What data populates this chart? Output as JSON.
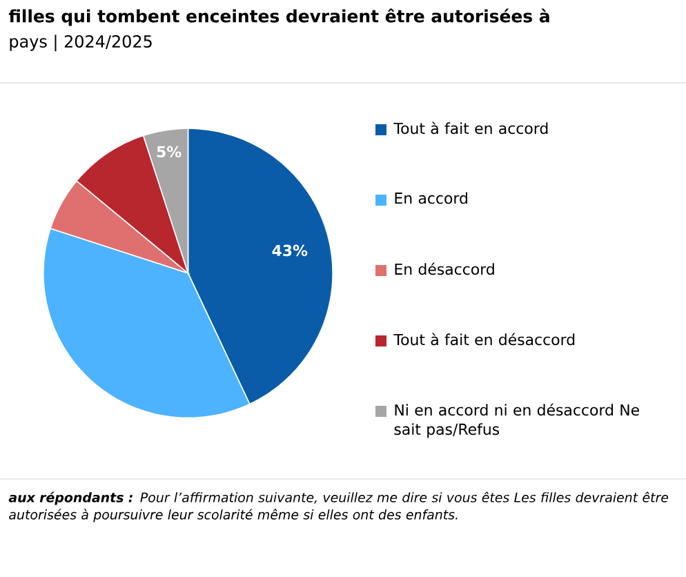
{
  "chart_data": {
    "type": "pie",
    "title": "filles qui tombent enceintes devraient être autorisées à",
    "subtitle": "pays | 2024/2025",
    "categories": [
      "Tout à fait en accord",
      "En accord",
      "En désaccord",
      "Tout à fait en désaccord",
      "Ni en accord ni en désaccord Ne sait pas/Refus"
    ],
    "values": [
      43,
      37,
      6,
      9,
      5
    ],
    "colors": [
      "#0a5ca8",
      "#4db3ff",
      "#e07070",
      "#b8262e",
      "#a6a6a6"
    ],
    "value_labels": [
      "43%",
      null,
      null,
      null,
      "5%"
    ],
    "legend": "right",
    "annotations": [
      "**aux répondants :** Pour l’affirmation suivante, veuillez me dire si vous êtes Les filles devraient être autorisées à poursuivre leur scolarité même si elles ont des enfants."
    ]
  }
}
